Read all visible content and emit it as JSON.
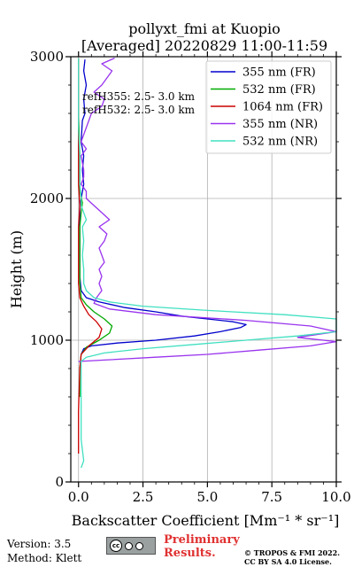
{
  "header": {
    "title_line1": "pollyxt_fmi at Kuopio",
    "title_line2": "[Averaged] 20220829 11:00-11:59"
  },
  "annotation": {
    "line1": "refH355:  2.5- 3.0 km",
    "line2": "refH532:  2.5- 3.0 km"
  },
  "footer": {
    "version": "Version: 3.5",
    "method": "Method: Klett",
    "prelim_line1": "Preliminary",
    "prelim_line2": "Results.",
    "copyright_line1": "© TROPOS & FMI 2022.",
    "copyright_line2": "CC BY SA 4.0 License."
  },
  "chart_data": {
    "type": "line",
    "xlabel": "Backscatter Coefficient [Mm⁻¹ * sr⁻¹]",
    "ylabel": "Height (m)",
    "xlim": [
      -0.3,
      10
    ],
    "ylim": [
      0,
      3000
    ],
    "xticks": [
      0,
      2.5,
      5,
      7.5,
      10
    ],
    "xtick_labels": [
      "0.0",
      "2.5",
      "5.0",
      "7.5",
      "10.0"
    ],
    "yticks": [
      0,
      1000,
      2000,
      3000
    ],
    "ytick_labels": [
      "0",
      "1000",
      "2000",
      "3000"
    ],
    "grid": true,
    "legend_position": "top-right",
    "series": [
      {
        "name": "355 nm (FR)",
        "color": "#0000cd",
        "points": [
          [
            0.1,
            900
          ],
          [
            0.2,
            940
          ],
          [
            0.5,
            960
          ],
          [
            1.5,
            980
          ],
          [
            3.0,
            1000
          ],
          [
            4.5,
            1030
          ],
          [
            5.5,
            1060
          ],
          [
            6.3,
            1090
          ],
          [
            6.5,
            1110
          ],
          [
            6.0,
            1130
          ],
          [
            5.0,
            1150
          ],
          [
            4.0,
            1170
          ],
          [
            3.0,
            1200
          ],
          [
            1.8,
            1230
          ],
          [
            0.8,
            1270
          ],
          [
            0.3,
            1300
          ],
          [
            0.1,
            1350
          ],
          [
            0.05,
            1450
          ],
          [
            0.05,
            1600
          ],
          [
            0.05,
            1800
          ],
          [
            0.05,
            1950
          ],
          [
            0.1,
            2000
          ],
          [
            0.2,
            2100
          ],
          [
            0.15,
            2200
          ],
          [
            0.2,
            2300
          ],
          [
            0.1,
            2400
          ],
          [
            0.15,
            2550
          ],
          [
            0.25,
            2600
          ],
          [
            0.2,
            2700
          ],
          [
            0.3,
            2800
          ],
          [
            0.2,
            2900
          ],
          [
            0.25,
            2980
          ]
        ]
      },
      {
        "name": "532 nm (FR)",
        "color": "#00aa00",
        "points": [
          [
            0.05,
            600
          ],
          [
            0.05,
            800
          ],
          [
            0.1,
            900
          ],
          [
            0.3,
            950
          ],
          [
            0.8,
            1000
          ],
          [
            1.2,
            1050
          ],
          [
            1.3,
            1100
          ],
          [
            1.0,
            1150
          ],
          [
            0.6,
            1200
          ],
          [
            0.3,
            1250
          ],
          [
            0.1,
            1300
          ],
          [
            0.05,
            1400
          ],
          [
            0.05,
            1600
          ],
          [
            0.05,
            1800
          ],
          [
            0.1,
            1900
          ],
          [
            0.15,
            1970
          ],
          [
            0.05,
            2050
          ],
          [
            0.05,
            2300
          ],
          [
            0.0,
            2600
          ],
          [
            0.0,
            2800
          ],
          [
            0.0,
            2990
          ]
        ]
      },
      {
        "name": "1064 nm (FR)",
        "color": "#cc0000",
        "points": [
          [
            0.0,
            200
          ],
          [
            0.0,
            500
          ],
          [
            0.05,
            800
          ],
          [
            0.1,
            900
          ],
          [
            0.4,
            960
          ],
          [
            0.8,
            1020
          ],
          [
            0.9,
            1080
          ],
          [
            0.7,
            1130
          ],
          [
            0.4,
            1180
          ],
          [
            0.2,
            1240
          ],
          [
            0.05,
            1300
          ],
          [
            0.0,
            1400
          ],
          [
            0.0,
            1600
          ],
          [
            0.0,
            1800
          ],
          [
            0.05,
            1950
          ],
          [
            0.0,
            2100
          ],
          [
            0.0,
            2400
          ],
          [
            0.0,
            2700
          ],
          [
            0.0,
            2990
          ]
        ]
      },
      {
        "name": "355 nm (NR)",
        "color": "#9933ee",
        "points": [
          [
            0.0,
            850
          ],
          [
            1.0,
            860
          ],
          [
            3.0,
            880
          ],
          [
            5.0,
            900
          ],
          [
            7.0,
            930
          ],
          [
            9.0,
            960
          ],
          [
            10.0,
            990
          ],
          [
            8.5,
            1020
          ],
          [
            10.0,
            1060
          ],
          [
            9.0,
            1100
          ],
          [
            6.5,
            1140
          ],
          [
            3.0,
            1180
          ],
          [
            1.2,
            1220
          ],
          [
            0.6,
            1260
          ],
          [
            0.7,
            1300
          ],
          [
            0.9,
            1350
          ],
          [
            0.8,
            1400
          ],
          [
            0.9,
            1450
          ],
          [
            0.8,
            1500
          ],
          [
            1.0,
            1550
          ],
          [
            0.9,
            1600
          ],
          [
            0.8,
            1650
          ],
          [
            1.0,
            1700
          ],
          [
            1.1,
            1750
          ],
          [
            0.8,
            1800
          ],
          [
            1.2,
            1850
          ],
          [
            0.9,
            1900
          ],
          [
            0.6,
            1950
          ],
          [
            0.3,
            2000
          ],
          [
            0.3,
            2050
          ],
          [
            0.1,
            2100
          ],
          [
            0.2,
            2150
          ],
          [
            0.2,
            2200
          ],
          [
            0.1,
            2300
          ],
          [
            0.3,
            2350
          ],
          [
            0.1,
            2400
          ],
          [
            0.3,
            2500
          ],
          [
            0.4,
            2550
          ],
          [
            0.5,
            2600
          ],
          [
            0.9,
            2650
          ],
          [
            1.0,
            2700
          ],
          [
            0.6,
            2750
          ],
          [
            0.9,
            2800
          ],
          [
            1.1,
            2850
          ],
          [
            1.3,
            2900
          ],
          [
            0.9,
            2950
          ],
          [
            1.4,
            2990
          ]
        ]
      },
      {
        "name": "532 nm (NR)",
        "color": "#40e0c0",
        "points": [
          [
            0.1,
            100
          ],
          [
            0.2,
            150
          ],
          [
            0.1,
            300
          ],
          [
            0.1,
            500
          ],
          [
            0.1,
            700
          ],
          [
            0.1,
            850
          ],
          [
            0.3,
            880
          ],
          [
            1.0,
            910
          ],
          [
            2.5,
            940
          ],
          [
            4.5,
            970
          ],
          [
            6.5,
            1000
          ],
          [
            8.5,
            1030
          ],
          [
            10.0,
            1060
          ],
          [
            10.0,
            1100
          ],
          [
            10.0,
            1150
          ],
          [
            8.0,
            1180
          ],
          [
            5.0,
            1210
          ],
          [
            2.5,
            1240
          ],
          [
            1.2,
            1270
          ],
          [
            0.6,
            1300
          ],
          [
            0.3,
            1350
          ],
          [
            0.2,
            1400
          ],
          [
            0.2,
            1500
          ],
          [
            0.15,
            1600
          ],
          [
            0.2,
            1700
          ],
          [
            0.15,
            1800
          ],
          [
            0.3,
            1850
          ],
          [
            0.2,
            1900
          ],
          [
            0.1,
            1950
          ],
          [
            0.1,
            2000
          ],
          [
            0.05,
            2100
          ],
          [
            0.05,
            2300
          ],
          [
            0.0,
            2500
          ],
          [
            0.0,
            2700
          ],
          [
            0.0,
            2990
          ]
        ]
      }
    ]
  }
}
